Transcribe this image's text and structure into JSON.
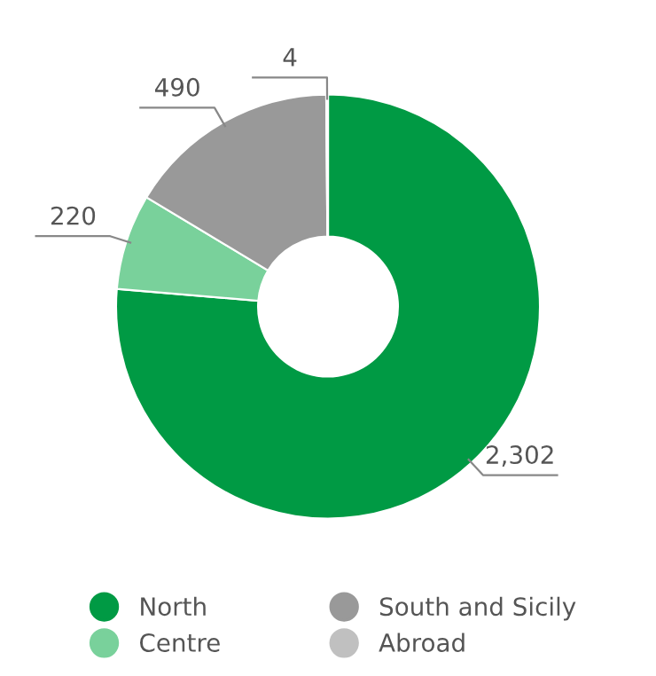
{
  "chart_data": {
    "type": "donut",
    "categories": [
      "North",
      "Centre",
      "South and Sicily",
      "Abroad"
    ],
    "values": [
      2302,
      220,
      490,
      4
    ],
    "colors": [
      "#009a44",
      "#79d19b",
      "#999999",
      "#c0c0c0"
    ],
    "value_labels": [
      "2,302",
      "220",
      "490",
      "4"
    ],
    "legend": "bottom"
  }
}
